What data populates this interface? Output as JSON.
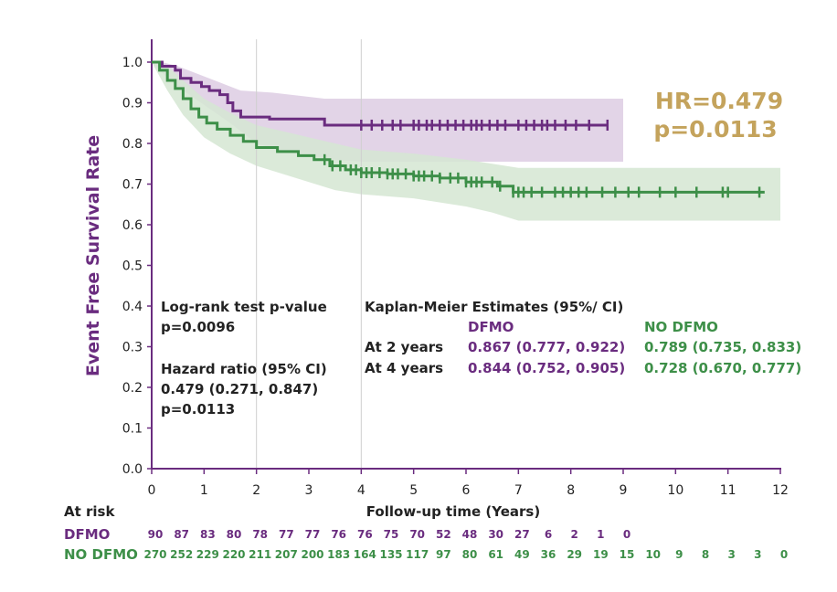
{
  "chart_data": {
    "type": "line",
    "subtype": "kaplan-meier",
    "xlabel": "Follow-up time (Years)",
    "ylabel": "Event Free Survival Rate",
    "xlim": [
      0,
      12
    ],
    "ylim": [
      0,
      1
    ],
    "x_ticks": [
      "0",
      "1",
      "2",
      "3",
      "4",
      "5",
      "6",
      "7",
      "8",
      "9",
      "10",
      "11",
      "12"
    ],
    "y_ticks": [
      "0.0",
      "0.1",
      "0.2",
      "0.3",
      "0.4",
      "0.5",
      "0.6",
      "0.7",
      "0.8",
      "0.9",
      "1.0"
    ],
    "reference_lines_x": [
      2,
      4
    ],
    "series": [
      {
        "name": "DFMO",
        "color": "#6a2c7f",
        "band_color": "#e0d2e6",
        "steps": [
          [
            0,
            1.0
          ],
          [
            0.2,
            0.99
          ],
          [
            0.45,
            0.98
          ],
          [
            0.55,
            0.96
          ],
          [
            0.75,
            0.95
          ],
          [
            0.95,
            0.94
          ],
          [
            1.1,
            0.93
          ],
          [
            1.3,
            0.92
          ],
          [
            1.45,
            0.9
          ],
          [
            1.55,
            0.88
          ],
          [
            1.7,
            0.865
          ],
          [
            2.2,
            0.865
          ],
          [
            2.25,
            0.86
          ],
          [
            3.0,
            0.86
          ],
          [
            3.3,
            0.845
          ],
          [
            8.7,
            0.845
          ]
        ],
        "band_upper": [
          [
            0,
            1.0
          ],
          [
            0.2,
            1.0
          ],
          [
            0.5,
            0.99
          ],
          [
            0.9,
            0.97
          ],
          [
            1.3,
            0.95
          ],
          [
            1.7,
            0.93
          ],
          [
            2.3,
            0.925
          ],
          [
            3.3,
            0.91
          ],
          [
            9.0,
            0.91
          ]
        ],
        "band_lower": [
          [
            0,
            1.0
          ],
          [
            0.3,
            0.96
          ],
          [
            0.6,
            0.93
          ],
          [
            1.0,
            0.895
          ],
          [
            1.5,
            0.85
          ],
          [
            2.0,
            0.8
          ],
          [
            2.5,
            0.78
          ],
          [
            3.0,
            0.77
          ],
          [
            3.5,
            0.76
          ],
          [
            4.0,
            0.755
          ],
          [
            9.0,
            0.755
          ]
        ],
        "censor_x": [
          4.0,
          4.2,
          4.4,
          4.6,
          4.75,
          5.0,
          5.1,
          5.25,
          5.35,
          5.5,
          5.65,
          5.8,
          5.95,
          6.1,
          6.2,
          6.3,
          6.45,
          6.6,
          6.75,
          7.0,
          7.15,
          7.3,
          7.45,
          7.55,
          7.7,
          7.9,
          8.1,
          8.35,
          8.7
        ]
      },
      {
        "name": "NO DFMO",
        "color": "#3d8f48",
        "band_color": "#d5e6d2",
        "steps": [
          [
            0,
            1.0
          ],
          [
            0.15,
            0.98
          ],
          [
            0.3,
            0.955
          ],
          [
            0.45,
            0.935
          ],
          [
            0.6,
            0.91
          ],
          [
            0.75,
            0.885
          ],
          [
            0.9,
            0.865
          ],
          [
            1.05,
            0.85
          ],
          [
            1.25,
            0.835
          ],
          [
            1.5,
            0.82
          ],
          [
            1.75,
            0.805
          ],
          [
            2.0,
            0.79
          ],
          [
            2.4,
            0.78
          ],
          [
            2.8,
            0.77
          ],
          [
            3.1,
            0.76
          ],
          [
            3.4,
            0.745
          ],
          [
            3.7,
            0.735
          ],
          [
            4.0,
            0.728
          ],
          [
            4.5,
            0.725
          ],
          [
            5.0,
            0.72
          ],
          [
            5.5,
            0.715
          ],
          [
            6.0,
            0.705
          ],
          [
            6.6,
            0.695
          ],
          [
            6.9,
            0.68
          ],
          [
            11.7,
            0.68
          ]
        ],
        "band_upper": [
          [
            0,
            1.0
          ],
          [
            0.3,
            0.99
          ],
          [
            0.6,
            0.955
          ],
          [
            1.0,
            0.91
          ],
          [
            1.5,
            0.875
          ],
          [
            2.0,
            0.845
          ],
          [
            2.5,
            0.83
          ],
          [
            3.0,
            0.815
          ],
          [
            3.5,
            0.8
          ],
          [
            4.0,
            0.785
          ],
          [
            5.0,
            0.775
          ],
          [
            6.0,
            0.76
          ],
          [
            6.5,
            0.75
          ],
          [
            7.0,
            0.74
          ],
          [
            12.0,
            0.74
          ]
        ],
        "band_lower": [
          [
            0,
            1.0
          ],
          [
            0.3,
            0.93
          ],
          [
            0.6,
            0.87
          ],
          [
            1.0,
            0.815
          ],
          [
            1.5,
            0.775
          ],
          [
            2.0,
            0.745
          ],
          [
            2.5,
            0.725
          ],
          [
            3.0,
            0.705
          ],
          [
            3.5,
            0.685
          ],
          [
            4.0,
            0.675
          ],
          [
            5.0,
            0.665
          ],
          [
            6.0,
            0.645
          ],
          [
            6.5,
            0.63
          ],
          [
            7.0,
            0.61
          ],
          [
            12.0,
            0.61
          ]
        ],
        "censor_x": [
          3.3,
          3.45,
          3.6,
          3.8,
          3.9,
          4.0,
          4.1,
          4.2,
          4.35,
          4.5,
          4.6,
          4.7,
          4.85,
          5.0,
          5.1,
          5.2,
          5.35,
          5.5,
          5.7,
          5.85,
          6.0,
          6.1,
          6.2,
          6.3,
          6.5,
          6.65,
          6.9,
          7.0,
          7.1,
          7.25,
          7.45,
          7.7,
          7.85,
          8.0,
          8.15,
          8.3,
          8.6,
          8.85,
          9.1,
          9.3,
          9.7,
          10.0,
          10.4,
          10.9,
          11.0,
          11.6
        ]
      }
    ]
  },
  "hr_label": {
    "line1": "HR=0.479",
    "line2": "p=0.0113"
  },
  "annotations": {
    "logrank_title": "Log-rank test p-value",
    "logrank_p": "p=0.0096",
    "hazard_title": "Hazard ratio (95% CI)",
    "hazard_value": "0.479 (0.271, 0.847)",
    "hazard_p": "p=0.0113",
    "km_title": "Kaplan-Meier Estimates (95%/ CI)",
    "km_col_dfmo": "DFMO",
    "km_col_no": "NO DFMO",
    "km_row1_label": "At 2 years",
    "km_row1_dfmo": "0.867 (0.777, 0.922)",
    "km_row1_no": "0.789 (0.735, 0.833)",
    "km_row2_label": "At 4 years",
    "km_row2_dfmo": "0.844 (0.752, 0.905)",
    "km_row2_no": "0.728 (0.670, 0.777)"
  },
  "at_risk": {
    "title": "At risk",
    "dfmo_label": "DFMO",
    "no_label": "NO DFMO",
    "dfmo_values": [
      "90",
      "87",
      "83",
      "80",
      "78",
      "77",
      "77",
      "76",
      "76",
      "75",
      "70",
      "52",
      "48",
      "30",
      "27",
      "6",
      "2",
      "1",
      "0"
    ],
    "no_values": [
      "270",
      "252",
      "229",
      "220",
      "211",
      "207",
      "200",
      "183",
      "164",
      "135",
      "117",
      "97",
      "80",
      "61",
      "49",
      "36",
      "29",
      "19",
      "15",
      "10",
      "9",
      "8",
      "3",
      "3",
      "0"
    ]
  }
}
